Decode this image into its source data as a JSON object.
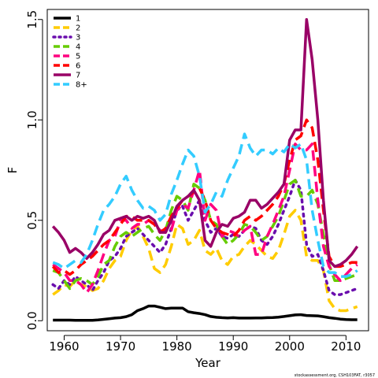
{
  "chart_data": {
    "type": "line",
    "xlabel": "Year",
    "ylabel": "F",
    "xlim": [
      1957,
      2014
    ],
    "ylim": [
      -0.05,
      1.55
    ],
    "xticks": [
      1960,
      1970,
      1980,
      1990,
      2000,
      2010
    ],
    "yticks": [
      0.0,
      0.5,
      1.0,
      1.5
    ],
    "ytick_labels": [
      "0.0",
      "0.5",
      "1.0",
      "1.5"
    ],
    "grid": false,
    "legend_position": "top-left",
    "credit": "stockassessment.org, CSH103FAT, r3057",
    "x": [
      1958,
      1959,
      1960,
      1961,
      1962,
      1963,
      1964,
      1965,
      1966,
      1967,
      1968,
      1969,
      1970,
      1971,
      1972,
      1973,
      1974,
      1975,
      1976,
      1977,
      1978,
      1979,
      1980,
      1981,
      1982,
      1983,
      1984,
      1985,
      1986,
      1987,
      1988,
      1989,
      1990,
      1991,
      1992,
      1993,
      1994,
      1995,
      1996,
      1997,
      1998,
      1999,
      2000,
      2001,
      2002,
      2003,
      2004,
      2005,
      2006,
      2007,
      2008,
      2009,
      2010,
      2011,
      2012
    ],
    "series": [
      {
        "name": "1",
        "color": "#000000",
        "dash": "solid",
        "values": [
          0.003,
          0.003,
          0.003,
          0.003,
          0.002,
          0.002,
          0.002,
          0.002,
          0.004,
          0.007,
          0.01,
          0.013,
          0.015,
          0.02,
          0.03,
          0.05,
          0.06,
          0.073,
          0.073,
          0.067,
          0.06,
          0.063,
          0.063,
          0.063,
          0.045,
          0.04,
          0.036,
          0.03,
          0.021,
          0.017,
          0.015,
          0.014,
          0.015,
          0.013,
          0.013,
          0.013,
          0.014,
          0.014,
          0.015,
          0.016,
          0.018,
          0.021,
          0.025,
          0.029,
          0.03,
          0.026,
          0.025,
          0.024,
          0.02,
          0.015,
          0.012,
          0.008,
          0.006,
          0.005,
          0.005
        ]
      },
      {
        "name": "2",
        "color": "#ffcc00",
        "dash": "dashed",
        "values": [
          0.13,
          0.15,
          0.18,
          0.17,
          0.2,
          0.18,
          0.17,
          0.15,
          0.16,
          0.2,
          0.26,
          0.3,
          0.32,
          0.4,
          0.45,
          0.47,
          0.42,
          0.36,
          0.26,
          0.24,
          0.28,
          0.37,
          0.48,
          0.46,
          0.38,
          0.4,
          0.45,
          0.35,
          0.33,
          0.36,
          0.3,
          0.28,
          0.32,
          0.33,
          0.37,
          0.4,
          0.38,
          0.35,
          0.32,
          0.31,
          0.35,
          0.43,
          0.52,
          0.55,
          0.5,
          0.32,
          0.3,
          0.3,
          0.25,
          0.1,
          0.06,
          0.05,
          0.05,
          0.06,
          0.07
        ]
      },
      {
        "name": "3",
        "color": "#6a0dad",
        "dash": "dotted",
        "values": [
          0.18,
          0.16,
          0.2,
          0.18,
          0.22,
          0.2,
          0.18,
          0.15,
          0.2,
          0.24,
          0.3,
          0.32,
          0.36,
          0.42,
          0.44,
          0.46,
          0.43,
          0.4,
          0.37,
          0.34,
          0.38,
          0.46,
          0.55,
          0.57,
          0.5,
          0.55,
          0.6,
          0.5,
          0.44,
          0.46,
          0.42,
          0.41,
          0.43,
          0.42,
          0.45,
          0.47,
          0.46,
          0.4,
          0.38,
          0.42,
          0.48,
          0.55,
          0.62,
          0.7,
          0.65,
          0.38,
          0.32,
          0.33,
          0.25,
          0.15,
          0.13,
          0.13,
          0.14,
          0.15,
          0.16
        ]
      },
      {
        "name": "4",
        "color": "#66cc00",
        "dash": "dashed",
        "values": [
          0.25,
          0.24,
          0.2,
          0.16,
          0.2,
          0.21,
          0.2,
          0.18,
          0.22,
          0.28,
          0.3,
          0.37,
          0.42,
          0.44,
          0.42,
          0.44,
          0.46,
          0.47,
          0.43,
          0.4,
          0.45,
          0.55,
          0.62,
          0.6,
          0.55,
          0.68,
          0.66,
          0.6,
          0.5,
          0.48,
          0.42,
          0.38,
          0.4,
          0.43,
          0.48,
          0.47,
          0.44,
          0.4,
          0.42,
          0.47,
          0.52,
          0.6,
          0.68,
          0.7,
          0.62,
          0.62,
          0.65,
          0.58,
          0.43,
          0.28,
          0.2,
          0.2,
          0.21,
          0.22,
          0.23
        ]
      },
      {
        "name": "5",
        "color": "#ff0080",
        "dash": "dashed",
        "values": [
          0.28,
          0.26,
          0.24,
          0.2,
          0.2,
          0.18,
          0.14,
          0.18,
          0.25,
          0.33,
          0.4,
          0.42,
          0.5,
          0.5,
          0.46,
          0.48,
          0.48,
          0.5,
          0.48,
          0.45,
          0.44,
          0.45,
          0.55,
          0.58,
          0.56,
          0.65,
          0.75,
          0.5,
          0.58,
          0.55,
          0.42,
          0.45,
          0.44,
          0.42,
          0.45,
          0.47,
          0.33,
          0.33,
          0.42,
          0.48,
          0.55,
          0.62,
          0.75,
          0.88,
          0.85,
          0.85,
          0.88,
          0.6,
          0.37,
          0.27,
          0.23,
          0.2,
          0.23,
          0.26,
          0.28
        ]
      },
      {
        "name": "6",
        "color": "#ff0000",
        "dash": "dashed",
        "values": [
          0.27,
          0.24,
          0.25,
          0.23,
          0.25,
          0.28,
          0.3,
          0.32,
          0.35,
          0.38,
          0.4,
          0.44,
          0.48,
          0.52,
          0.52,
          0.5,
          0.5,
          0.5,
          0.48,
          0.44,
          0.46,
          0.52,
          0.56,
          0.6,
          0.62,
          0.64,
          0.66,
          0.6,
          0.5,
          0.46,
          0.44,
          0.43,
          0.42,
          0.45,
          0.5,
          0.52,
          0.5,
          0.52,
          0.55,
          0.58,
          0.62,
          0.68,
          0.8,
          0.9,
          0.92,
          1.0,
          0.96,
          0.8,
          0.55,
          0.32,
          0.27,
          0.27,
          0.28,
          0.29,
          0.29
        ]
      },
      {
        "name": "7",
        "color": "#990066",
        "dash": "solid",
        "values": [
          0.47,
          0.44,
          0.4,
          0.34,
          0.36,
          0.34,
          0.31,
          0.34,
          0.38,
          0.43,
          0.45,
          0.5,
          0.51,
          0.52,
          0.5,
          0.52,
          0.51,
          0.52,
          0.5,
          0.44,
          0.44,
          0.5,
          0.57,
          0.6,
          0.62,
          0.65,
          0.6,
          0.4,
          0.37,
          0.44,
          0.48,
          0.47,
          0.51,
          0.52,
          0.54,
          0.6,
          0.6,
          0.56,
          0.58,
          0.61,
          0.64,
          0.68,
          0.9,
          0.95,
          0.95,
          1.5,
          1.3,
          1.0,
          0.6,
          0.3,
          0.27,
          0.28,
          0.3,
          0.33,
          0.37
        ]
      },
      {
        "name": "8+",
        "color": "#33ccff",
        "dash": "dashed",
        "values": [
          0.29,
          0.28,
          0.26,
          0.28,
          0.3,
          0.29,
          0.33,
          0.4,
          0.48,
          0.55,
          0.58,
          0.62,
          0.68,
          0.72,
          0.65,
          0.6,
          0.56,
          0.57,
          0.55,
          0.5,
          0.53,
          0.63,
          0.7,
          0.78,
          0.85,
          0.82,
          0.72,
          0.54,
          0.58,
          0.64,
          0.62,
          0.7,
          0.76,
          0.82,
          0.93,
          0.86,
          0.82,
          0.85,
          0.85,
          0.83,
          0.86,
          0.84,
          0.88,
          0.86,
          0.88,
          0.8,
          0.55,
          0.4,
          0.27,
          0.24,
          0.24,
          0.22,
          0.22,
          0.23,
          0.25
        ]
      }
    ]
  }
}
